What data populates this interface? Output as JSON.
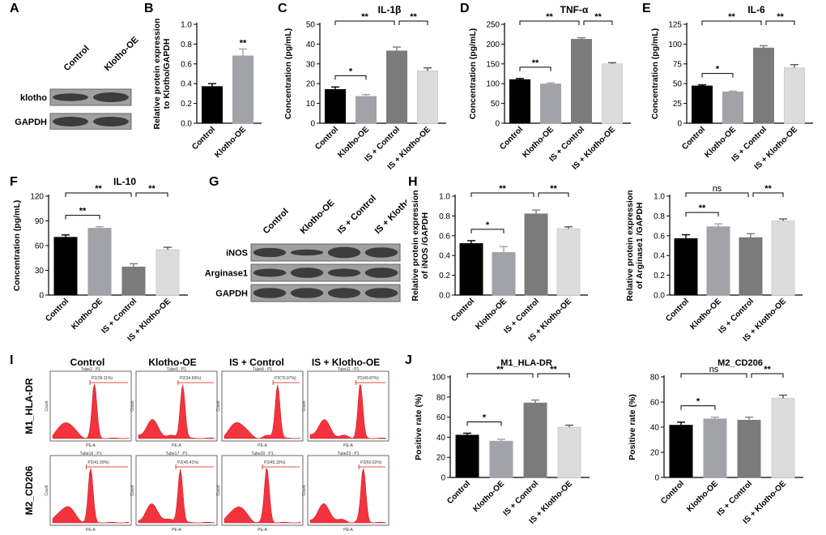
{
  "panel_letters": [
    "A",
    "B",
    "C",
    "D",
    "E",
    "F",
    "G",
    "H",
    "I",
    "J"
  ],
  "colors": {
    "control": "#000000",
    "klotho": "#a2a2a9",
    "is_control": "#7b7b7b",
    "is_klotho": "#dcdcdc",
    "flow_fill": "#f21d2a",
    "blot_bg": "#a0a0a0",
    "blot_band": "#2a2a2a"
  },
  "blots": {
    "A": {
      "lanes": [
        "Control",
        "Klotho-OE"
      ],
      "rows": [
        "klotho",
        "GAPDH"
      ]
    },
    "G": {
      "lanes": [
        "Control",
        "Klotho-OE",
        "IS + Control",
        "IS + Klotho-OE"
      ],
      "rows": [
        "iNOS",
        "Arginase1",
        "GAPDH"
      ]
    }
  },
  "flow": {
    "columns": [
      "Control",
      "Klotho-OE",
      "IS + Control",
      "IS + Klotho-OE"
    ],
    "rows": [
      "M1_HLA-DR",
      "M2_CD206"
    ],
    "axis_x": "PE-A",
    "axis_y": "Count",
    "tube_labels": [
      [
        "Tube2 : P1",
        "Tube5 : P1",
        "Tube8 : P1",
        "Tube11 : P1"
      ],
      [
        "Tube16 : P1",
        "Tube17 : P1",
        "Tube20 : P1",
        "Tube23 : P1"
      ]
    ],
    "gate_labels": [
      [
        "P2(39.11%)",
        "P2(34.69%)",
        "P2(70.07%)",
        "P2(49.87%)"
      ],
      [
        "P2(41.59%)",
        "P2(45.41%)",
        "P2(45.15%)",
        "P2(60.62%)"
      ]
    ]
  },
  "chart_data": [
    {
      "id": "B",
      "type": "bar",
      "title": "",
      "ylabel": "Relative protein expression to Klotho/GAPDH",
      "categories": [
        "Control",
        "Klotho-OE"
      ],
      "values": [
        0.37,
        0.68
      ],
      "errors": [
        0.03,
        0.07
      ],
      "ylim": [
        0,
        1.0
      ],
      "yticks": [
        "0.0",
        "0.2",
        "0.4",
        "0.6",
        "0.8",
        "1.0"
      ],
      "annotations": [
        {
          "text": "**",
          "bar": 1
        }
      ]
    },
    {
      "id": "C",
      "type": "bar",
      "title": "IL-1β",
      "ylabel": "Concentration (pg/mL)",
      "categories": [
        "Control",
        "Klotho-OE",
        "IS + Control",
        "IS + Klotho-OE"
      ],
      "values": [
        17,
        13.5,
        36.5,
        26.5
      ],
      "errors": [
        1.3,
        1,
        2,
        1.5
      ],
      "ylim": [
        0,
        50
      ],
      "yticks": [
        "0",
        "10",
        "20",
        "30",
        "40",
        "50"
      ],
      "brackets": [
        {
          "from": 0,
          "to": 1,
          "text": "*"
        },
        {
          "from": 0,
          "to": 2,
          "text": "**"
        },
        {
          "from": 2,
          "to": 3,
          "text": "**"
        }
      ]
    },
    {
      "id": "D",
      "type": "bar",
      "title": "TNF-α",
      "ylabel": "Concentration (pg/mL)",
      "categories": [
        "Control",
        "Klotho-OE",
        "IS + Control",
        "IS + Klotho-OE"
      ],
      "values": [
        110,
        99,
        212,
        150
      ],
      "errors": [
        3,
        3,
        4,
        3
      ],
      "ylim": [
        0,
        250
      ],
      "yticks": [
        "0",
        "50",
        "100",
        "150",
        "200",
        "250"
      ],
      "brackets": [
        {
          "from": 0,
          "to": 1,
          "text": "**"
        },
        {
          "from": 0,
          "to": 2,
          "text": "**"
        },
        {
          "from": 2,
          "to": 3,
          "text": "**"
        }
      ]
    },
    {
      "id": "E",
      "type": "bar",
      "title": "IL-6",
      "ylabel": "Concentration (pg/mL)",
      "categories": [
        "Control",
        "Klotho-OE",
        "IS + Control",
        "IS + Klotho-OE"
      ],
      "values": [
        47,
        39.5,
        95,
        70
      ],
      "errors": [
        1.5,
        1,
        3,
        4
      ],
      "ylim": [
        0,
        125
      ],
      "yticks": [
        "0",
        "25",
        "50",
        "75",
        "100",
        "125"
      ],
      "brackets": [
        {
          "from": 0,
          "to": 1,
          "text": "*"
        },
        {
          "from": 0,
          "to": 2,
          "text": "**"
        },
        {
          "from": 2,
          "to": 3,
          "text": "**"
        }
      ]
    },
    {
      "id": "F",
      "type": "bar",
      "title": "IL-10",
      "ylabel": "Concentration (pg/mL)",
      "categories": [
        "Control",
        "Klotho-OE",
        "IS + Control",
        "IS + Klotho-OE"
      ],
      "values": [
        70,
        81,
        34,
        55
      ],
      "errors": [
        3,
        2,
        4,
        3
      ],
      "ylim": [
        0,
        120
      ],
      "yticks": [
        "0",
        "30",
        "60",
        "90",
        "120"
      ],
      "brackets": [
        {
          "from": 0,
          "to": 1,
          "text": "**"
        },
        {
          "from": 0,
          "to": 2,
          "text": "**"
        },
        {
          "from": 2,
          "to": 3,
          "text": "**"
        }
      ]
    },
    {
      "id": "H1",
      "type": "bar",
      "title": "",
      "ylabel": "Relative protein expression of iNOS /GAPDH",
      "categories": [
        "Control",
        "Klotho-OE",
        "IS + Control",
        "IS + Klotho-OE"
      ],
      "values": [
        0.52,
        0.43,
        0.82,
        0.67
      ],
      "errors": [
        0.03,
        0.06,
        0.04,
        0.02
      ],
      "ylim": [
        0,
        1.0
      ],
      "yticks": [
        "0.0",
        "0.2",
        "0.4",
        "0.6",
        "0.8",
        "1.0"
      ],
      "brackets": [
        {
          "from": 0,
          "to": 1,
          "text": "*"
        },
        {
          "from": 0,
          "to": 2,
          "text": "**"
        },
        {
          "from": 2,
          "to": 3,
          "text": "**"
        }
      ]
    },
    {
      "id": "H2",
      "type": "bar",
      "title": "",
      "ylabel": "Relative protein expression of Arginase1 /GAPDH",
      "categories": [
        "Control",
        "Klotho-OE",
        "IS + Control",
        "IS + Klotho-OE"
      ],
      "values": [
        0.57,
        0.69,
        0.58,
        0.75
      ],
      "errors": [
        0.04,
        0.03,
        0.04,
        0.02
      ],
      "ylim": [
        0,
        1.0
      ],
      "yticks": [
        "0.0",
        "0.2",
        "0.4",
        "0.6",
        "0.8",
        "1.0"
      ],
      "brackets": [
        {
          "from": 0,
          "to": 1,
          "text": "**"
        },
        {
          "from": 0,
          "to": 2,
          "text": "ns"
        },
        {
          "from": 2,
          "to": 3,
          "text": "**"
        }
      ]
    },
    {
      "id": "J1",
      "type": "bar",
      "title": "M1_HLA-DR",
      "ylabel": "Positive rate (%)",
      "categories": [
        "Control",
        "Klotho-OE",
        "IS + Control",
        "IS + Klotho-OE"
      ],
      "values": [
        42,
        36,
        74,
        50
      ],
      "errors": [
        2,
        2,
        3,
        2
      ],
      "ylim": [
        0,
        100
      ],
      "yticks": [
        "0",
        "20",
        "40",
        "60",
        "80",
        "100"
      ],
      "brackets": [
        {
          "from": 0,
          "to": 1,
          "text": "*"
        },
        {
          "from": 0,
          "to": 2,
          "text": "**"
        },
        {
          "from": 2,
          "to": 3,
          "text": "**"
        }
      ]
    },
    {
      "id": "J2",
      "type": "bar",
      "title": "M2_CD206",
      "ylabel": "Positive rate (%)",
      "categories": [
        "Control",
        "Klotho-OE",
        "IS + Control",
        "IS + Klotho-OE"
      ],
      "values": [
        41.5,
        46.5,
        45.5,
        63
      ],
      "errors": [
        2.5,
        1.5,
        2.5,
        2.5
      ],
      "ylim": [
        0,
        80
      ],
      "yticks": [
        "0",
        "20",
        "40",
        "60",
        "80"
      ],
      "brackets": [
        {
          "from": 0,
          "to": 1,
          "text": "*"
        },
        {
          "from": 0,
          "to": 2,
          "text": "ns"
        },
        {
          "from": 2,
          "to": 3,
          "text": "**"
        }
      ]
    }
  ]
}
